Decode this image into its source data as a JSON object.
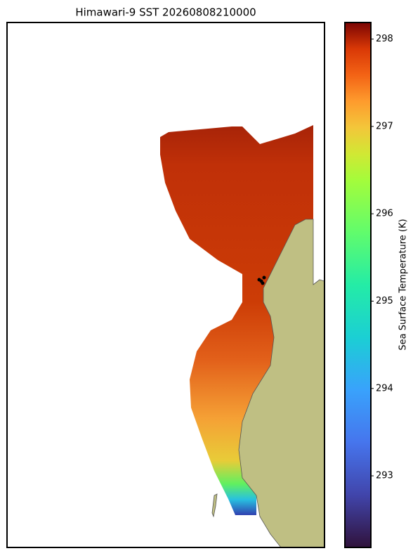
{
  "title": "Himawari-9 SST 20260808210000",
  "colorbar": {
    "label": "Sea Surface Temperature (K)",
    "lim": [
      292.18,
      298.19
    ],
    "ticks": [
      293,
      294,
      295,
      296,
      297,
      298
    ]
  }
}
